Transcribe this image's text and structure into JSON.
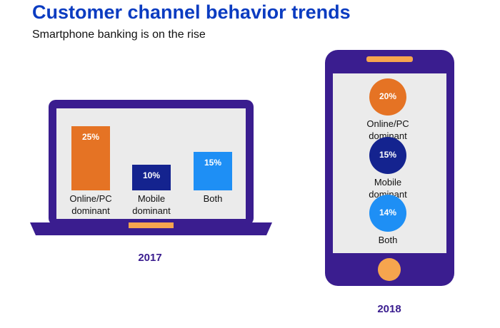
{
  "title": "Customer channel behavior trends",
  "subtitle": "Smartphone banking is on the rise",
  "chart_data": [
    {
      "type": "bar",
      "title": "2017",
      "categories": [
        "Online/PC dominant",
        "Mobile dominant",
        "Both"
      ],
      "values": [
        25,
        10,
        15
      ],
      "value_labels": [
        "25%",
        "10%",
        "15%"
      ],
      "colors": [
        "#e57324",
        "#14238f",
        "#1e8ff5"
      ]
    },
    {
      "type": "circle",
      "title": "2018",
      "categories": [
        "Online/PC dominant",
        "Mobile dominant",
        "Both"
      ],
      "values": [
        20,
        15,
        14
      ],
      "value_labels": [
        "20%",
        "15%",
        "14%"
      ],
      "colors": [
        "#e57324",
        "#14238f",
        "#1e8ff5"
      ]
    }
  ]
}
